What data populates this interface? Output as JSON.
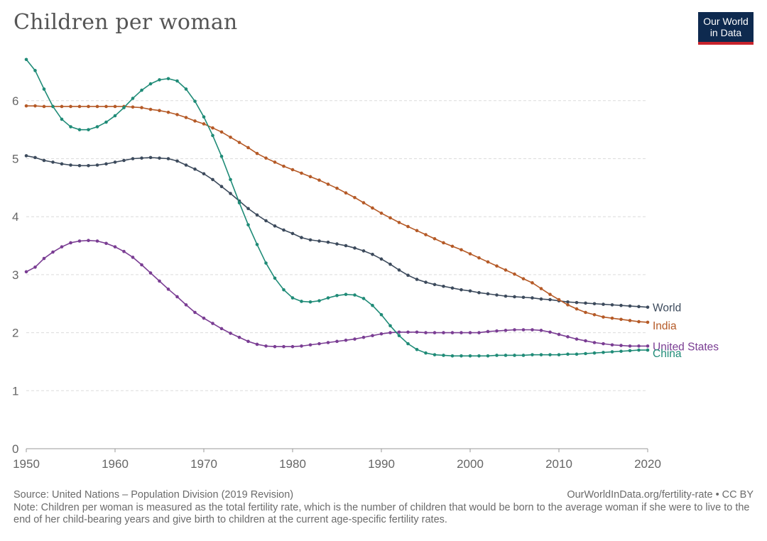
{
  "header": {
    "title": "Children per woman",
    "logo_line1": "Our World",
    "logo_line2": "in Data"
  },
  "footer": {
    "source": "Source: United Nations – Population Division (2019 Revision)",
    "link": "OurWorldInData.org/fertility-rate • CC BY",
    "note": "Note: Children per woman is measured as the total fertility rate, which is the number of children that would be born to the average woman if she were to live to the end of her child-bearing years and give birth to children at the current age-specific fertility rates."
  },
  "chart_data": {
    "type": "line",
    "title": "Children per woman",
    "xlabel": "",
    "ylabel": "",
    "xlim": [
      1950,
      2020
    ],
    "ylim": [
      0,
      7
    ],
    "x_ticks": [
      1950,
      1960,
      1970,
      1980,
      1990,
      2000,
      2010,
      2020
    ],
    "y_ticks": [
      0,
      1,
      2,
      3,
      4,
      5,
      6
    ],
    "grid": "horizontal dashed",
    "legend": "labels at line ends (right)",
    "x": [
      1950,
      1951,
      1952,
      1953,
      1954,
      1955,
      1956,
      1957,
      1958,
      1959,
      1960,
      1961,
      1962,
      1963,
      1964,
      1965,
      1966,
      1967,
      1968,
      1969,
      1970,
      1971,
      1972,
      1973,
      1974,
      1975,
      1976,
      1977,
      1978,
      1979,
      1980,
      1981,
      1982,
      1983,
      1984,
      1985,
      1986,
      1987,
      1988,
      1989,
      1990,
      1991,
      1992,
      1993,
      1994,
      1995,
      1996,
      1997,
      1998,
      1999,
      2000,
      2001,
      2002,
      2003,
      2004,
      2005,
      2006,
      2007,
      2008,
      2009,
      2010,
      2011,
      2012,
      2013,
      2014,
      2015,
      2016,
      2017,
      2018,
      2019,
      2020
    ],
    "series": [
      {
        "name": "World",
        "color": "#3c4a5c",
        "values": [
          5.05,
          5.02,
          4.97,
          4.94,
          4.91,
          4.89,
          4.88,
          4.88,
          4.89,
          4.91,
          4.94,
          4.97,
          5.0,
          5.01,
          5.02,
          5.01,
          5.0,
          4.96,
          4.89,
          4.82,
          4.74,
          4.64,
          4.52,
          4.4,
          4.27,
          4.14,
          4.03,
          3.93,
          3.84,
          3.77,
          3.71,
          3.64,
          3.6,
          3.58,
          3.56,
          3.53,
          3.5,
          3.46,
          3.41,
          3.35,
          3.27,
          3.18,
          3.08,
          2.99,
          2.92,
          2.87,
          2.83,
          2.8,
          2.77,
          2.74,
          2.72,
          2.69,
          2.67,
          2.65,
          2.63,
          2.62,
          2.61,
          2.6,
          2.58,
          2.57,
          2.55,
          2.53,
          2.52,
          2.51,
          2.5,
          2.49,
          2.48,
          2.47,
          2.46,
          2.45,
          2.44
        ]
      },
      {
        "name": "India",
        "color": "#b55a27",
        "values": [
          5.91,
          5.91,
          5.9,
          5.9,
          5.9,
          5.9,
          5.9,
          5.9,
          5.9,
          5.9,
          5.9,
          5.9,
          5.89,
          5.88,
          5.85,
          5.83,
          5.8,
          5.76,
          5.71,
          5.65,
          5.6,
          5.53,
          5.46,
          5.37,
          5.28,
          5.19,
          5.09,
          5.01,
          4.94,
          4.87,
          4.81,
          4.75,
          4.69,
          4.63,
          4.56,
          4.49,
          4.41,
          4.33,
          4.24,
          4.15,
          4.06,
          3.98,
          3.9,
          3.83,
          3.76,
          3.69,
          3.62,
          3.55,
          3.49,
          3.43,
          3.36,
          3.29,
          3.22,
          3.15,
          3.08,
          3.01,
          2.93,
          2.86,
          2.76,
          2.66,
          2.57,
          2.48,
          2.41,
          2.35,
          2.31,
          2.27,
          2.25,
          2.23,
          2.21,
          2.19,
          2.18
        ]
      },
      {
        "name": "United States",
        "color": "#7a3d93",
        "values": [
          3.05,
          3.13,
          3.28,
          3.39,
          3.48,
          3.55,
          3.58,
          3.59,
          3.58,
          3.54,
          3.48,
          3.4,
          3.3,
          3.17,
          3.03,
          2.89,
          2.75,
          2.62,
          2.48,
          2.35,
          2.25,
          2.16,
          2.07,
          1.99,
          1.92,
          1.85,
          1.8,
          1.77,
          1.76,
          1.76,
          1.76,
          1.77,
          1.79,
          1.81,
          1.83,
          1.85,
          1.87,
          1.89,
          1.92,
          1.95,
          1.98,
          2.0,
          2.01,
          2.01,
          2.01,
          2.0,
          2.0,
          2.0,
          2.0,
          2.0,
          2.0,
          2.0,
          2.02,
          2.03,
          2.04,
          2.05,
          2.05,
          2.05,
          2.04,
          2.01,
          1.97,
          1.93,
          1.89,
          1.86,
          1.83,
          1.81,
          1.79,
          1.78,
          1.77,
          1.77,
          1.77
        ]
      },
      {
        "name": "China",
        "color": "#1f8b77",
        "values": [
          6.71,
          6.52,
          6.2,
          5.9,
          5.68,
          5.55,
          5.5,
          5.5,
          5.55,
          5.63,
          5.74,
          5.88,
          6.04,
          6.18,
          6.29,
          6.36,
          6.38,
          6.34,
          6.2,
          5.99,
          5.72,
          5.4,
          5.04,
          4.64,
          4.24,
          3.86,
          3.52,
          3.2,
          2.94,
          2.74,
          2.6,
          2.54,
          2.53,
          2.55,
          2.6,
          2.64,
          2.66,
          2.65,
          2.59,
          2.47,
          2.31,
          2.12,
          1.95,
          1.81,
          1.71,
          1.65,
          1.62,
          1.61,
          1.6,
          1.6,
          1.6,
          1.6,
          1.6,
          1.61,
          1.61,
          1.61,
          1.61,
          1.62,
          1.62,
          1.62,
          1.62,
          1.63,
          1.63,
          1.64,
          1.65,
          1.66,
          1.67,
          1.68,
          1.69,
          1.7,
          1.7
        ]
      }
    ]
  }
}
